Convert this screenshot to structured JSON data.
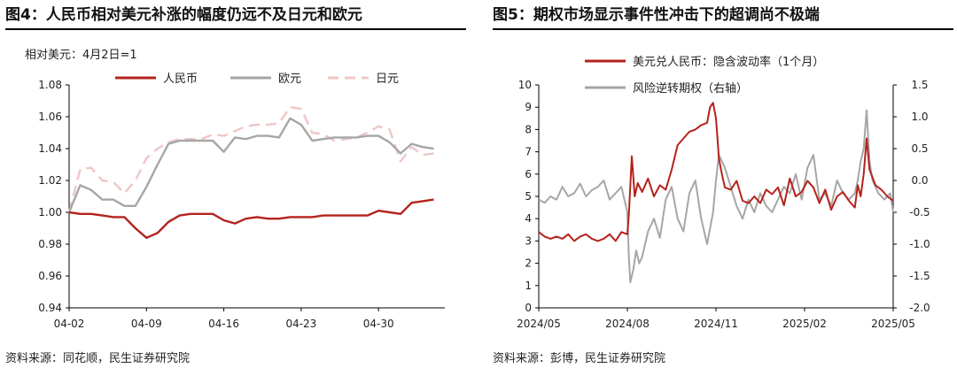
{
  "left": {
    "title": "图4：人民币相对美元补涨的幅度仍远不及日元和欧元",
    "note": "相对美元：4月2日=1",
    "source": "资料来源：同花顺，民生证券研究院",
    "chart_data": {
      "type": "line",
      "x_ticks": [
        "04-02",
        "04-09",
        "04-16",
        "04-23",
        "04-30"
      ],
      "x_tick_positions": [
        0,
        7,
        14,
        21,
        28
      ],
      "y_ticks": [
        "0.94",
        "0.96",
        "0.98",
        "1.00",
        "1.02",
        "1.04",
        "1.06",
        "1.08"
      ],
      "ylim": [
        0.94,
        1.08
      ],
      "xlim": [
        0,
        34
      ],
      "colors": {
        "rmb": "#b5221c",
        "eur": "#a6a6a6",
        "jpy": "#efc6c6"
      },
      "series": [
        {
          "name": "人民币",
          "key": "rmb",
          "style": "solid",
          "x": [
            0,
            1,
            2,
            3,
            4,
            5,
            6,
            7,
            8,
            9,
            10,
            11,
            12,
            13,
            14,
            15,
            16,
            17,
            18,
            19,
            20,
            21,
            22,
            23,
            24,
            25,
            26,
            27,
            28,
            29,
            30,
            31,
            32,
            33
          ],
          "values": [
            1.0,
            0.999,
            0.999,
            0.998,
            0.997,
            0.997,
            0.99,
            0.984,
            0.987,
            0.994,
            0.998,
            0.999,
            0.999,
            0.999,
            0.995,
            0.993,
            0.996,
            0.997,
            0.996,
            0.996,
            0.997,
            0.997,
            0.997,
            0.998,
            0.998,
            0.998,
            0.998,
            0.998,
            1.001,
            1.0,
            0.999,
            1.006,
            1.007,
            1.008
          ]
        },
        {
          "name": "欧元",
          "key": "eur",
          "style": "solid",
          "x": [
            0,
            1,
            2,
            3,
            4,
            5,
            6,
            7,
            8,
            9,
            10,
            11,
            12,
            13,
            14,
            15,
            16,
            17,
            18,
            19,
            20,
            21,
            22,
            23,
            24,
            25,
            26,
            27,
            28,
            29,
            30,
            31,
            32,
            33
          ],
          "values": [
            1.0,
            1.017,
            1.014,
            1.008,
            1.008,
            1.004,
            1.004,
            1.016,
            1.03,
            1.043,
            1.045,
            1.045,
            1.045,
            1.045,
            1.038,
            1.047,
            1.046,
            1.048,
            1.048,
            1.047,
            1.059,
            1.055,
            1.045,
            1.046,
            1.047,
            1.047,
            1.047,
            1.048,
            1.048,
            1.044,
            1.037,
            1.043,
            1.041,
            1.04
          ]
        },
        {
          "name": "日元",
          "key": "jpy",
          "style": "dash",
          "x": [
            0,
            1,
            2,
            3,
            4,
            5,
            6,
            7,
            8,
            9,
            10,
            11,
            12,
            13,
            14,
            15,
            16,
            17,
            18,
            19,
            20,
            21,
            22,
            23,
            24,
            25,
            26,
            27,
            28,
            29,
            30,
            31,
            32,
            33
          ],
          "values": [
            1.0,
            1.027,
            1.028,
            1.02,
            1.019,
            1.012,
            1.02,
            1.034,
            1.04,
            1.044,
            1.046,
            1.046,
            1.046,
            1.049,
            1.048,
            1.051,
            1.054,
            1.055,
            1.055,
            1.056,
            1.066,
            1.065,
            1.05,
            1.049,
            1.045,
            1.046,
            1.047,
            1.05,
            1.054,
            1.052,
            1.032,
            1.041,
            1.036,
            1.037
          ]
        }
      ]
    }
  },
  "right": {
    "title": "图5：期权市场显示事件性冲击下的超调尚不极端",
    "source": "资料来源：彭博，民生证券研究院",
    "chart_data": {
      "type": "line",
      "x_ticks": [
        "2024/05",
        "2024/08",
        "2024/11",
        "2025/02",
        "2025/05"
      ],
      "x_tick_positions": [
        0,
        3,
        6,
        9,
        12
      ],
      "xlim": [
        0,
        12
      ],
      "y_left_ticks": [
        "0",
        "1",
        "2",
        "3",
        "4",
        "5",
        "6",
        "7",
        "8",
        "9",
        "10"
      ],
      "ylim_left": [
        0,
        10
      ],
      "y_right_ticks": [
        "-2.0",
        "-1.5",
        "-1.0",
        "-0.5",
        "0.0",
        "0.5",
        "1.0",
        "1.5"
      ],
      "ylim_right": [
        -2.0,
        1.5
      ],
      "colors": {
        "vol": "#b5221c",
        "rr": "#a6a6a6"
      },
      "series": [
        {
          "name": "美元兑人民币：隐含波动率（1个月）",
          "key": "vol",
          "axis": "left",
          "x": [
            0,
            0.2,
            0.4,
            0.6,
            0.8,
            1.0,
            1.2,
            1.4,
            1.6,
            1.8,
            2.0,
            2.2,
            2.4,
            2.6,
            2.8,
            3.0,
            3.05,
            3.15,
            3.25,
            3.35,
            3.5,
            3.7,
            3.9,
            4.1,
            4.3,
            4.5,
            4.7,
            4.9,
            5.1,
            5.3,
            5.5,
            5.7,
            5.8,
            5.9,
            6.0,
            6.05,
            6.1,
            6.2,
            6.3,
            6.5,
            6.7,
            6.9,
            7.1,
            7.3,
            7.5,
            7.7,
            7.9,
            8.1,
            8.3,
            8.5,
            8.7,
            8.9,
            9.1,
            9.3,
            9.5,
            9.7,
            9.9,
            10.1,
            10.3,
            10.5,
            10.7,
            10.8,
            10.9,
            11.0,
            11.1,
            11.2,
            11.4,
            11.6,
            11.8,
            12.0
          ],
          "values": [
            3.4,
            3.2,
            3.1,
            3.2,
            3.1,
            3.3,
            3.0,
            3.2,
            3.3,
            3.1,
            3.0,
            3.1,
            3.3,
            3.0,
            3.4,
            3.3,
            4.2,
            6.8,
            5.0,
            5.6,
            5.2,
            5.8,
            5.0,
            5.5,
            5.3,
            6.2,
            7.3,
            7.6,
            7.9,
            8.0,
            8.2,
            8.3,
            9.0,
            9.2,
            8.5,
            7.6,
            6.7,
            6.0,
            5.4,
            5.3,
            5.7,
            4.8,
            4.7,
            5.0,
            4.7,
            5.3,
            5.1,
            5.4,
            4.6,
            5.8,
            5.0,
            5.2,
            5.7,
            5.4,
            4.7,
            5.3,
            4.4,
            5.0,
            5.2,
            4.8,
            4.5,
            5.5,
            5.0,
            6.0,
            7.6,
            6.2,
            5.5,
            5.3,
            5.0,
            4.8
          ]
        },
        {
          "name": "风险逆转期权（右轴）",
          "key": "rr",
          "axis": "right",
          "x": [
            0,
            0.2,
            0.4,
            0.6,
            0.8,
            1.0,
            1.2,
            1.4,
            1.6,
            1.8,
            2.0,
            2.2,
            2.4,
            2.6,
            2.8,
            3.0,
            3.05,
            3.1,
            3.2,
            3.3,
            3.4,
            3.5,
            3.7,
            3.9,
            4.1,
            4.3,
            4.5,
            4.7,
            4.9,
            5.1,
            5.3,
            5.5,
            5.7,
            5.9,
            6.0,
            6.1,
            6.3,
            6.5,
            6.7,
            6.9,
            7.1,
            7.3,
            7.5,
            7.7,
            7.9,
            8.1,
            8.3,
            8.5,
            8.7,
            8.9,
            9.1,
            9.3,
            9.5,
            9.7,
            9.9,
            10.1,
            10.3,
            10.5,
            10.7,
            10.8,
            10.9,
            11.0,
            11.1,
            11.2,
            11.3,
            11.5,
            11.7,
            11.9,
            12.0
          ],
          "values": [
            -0.3,
            -0.35,
            -0.25,
            -0.3,
            -0.1,
            -0.25,
            -0.2,
            -0.05,
            -0.25,
            -0.15,
            -0.1,
            0.0,
            -0.3,
            -0.2,
            -0.1,
            -0.5,
            -1.2,
            -1.6,
            -1.4,
            -1.1,
            -1.3,
            -1.2,
            -0.8,
            -0.6,
            -0.9,
            -0.3,
            -0.1,
            -0.6,
            -0.8,
            -0.2,
            0.0,
            -0.6,
            -1.0,
            -0.5,
            0.0,
            0.4,
            0.2,
            -0.1,
            -0.4,
            -0.6,
            -0.3,
            -0.5,
            -0.2,
            -0.4,
            -0.5,
            -0.3,
            -0.1,
            -0.2,
            0.1,
            -0.3,
            0.2,
            0.4,
            -0.3,
            -0.2,
            -0.4,
            0.0,
            -0.2,
            -0.3,
            -0.2,
            0.0,
            0.3,
            0.5,
            1.1,
            0.3,
            0.0,
            -0.2,
            -0.3,
            -0.2,
            -0.5
          ]
        }
      ]
    }
  }
}
